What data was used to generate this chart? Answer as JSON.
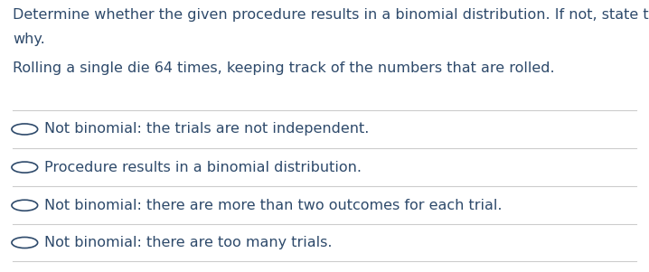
{
  "background_color": "#ffffff",
  "text_color": "#2e4a6b",
  "title_line1": "Determine whether the given procedure results in a binomial distribution. If not, state the reason",
  "title_line2": "why.",
  "scenario": "Rolling a single die 64 times, keeping track of the numbers that are rolled.",
  "options": [
    "Not binomial: the trials are not independent.",
    "Procedure results in a binomial distribution.",
    "Not binomial: there are more than two outcomes for each trial.",
    "Not binomial: there are too many trials."
  ],
  "divider_color": "#cccccc",
  "font_size_title": 11.5,
  "font_size_options": 11.5,
  "circle_color": "#2e4a6b",
  "fig_width": 7.18,
  "fig_height": 3.01
}
